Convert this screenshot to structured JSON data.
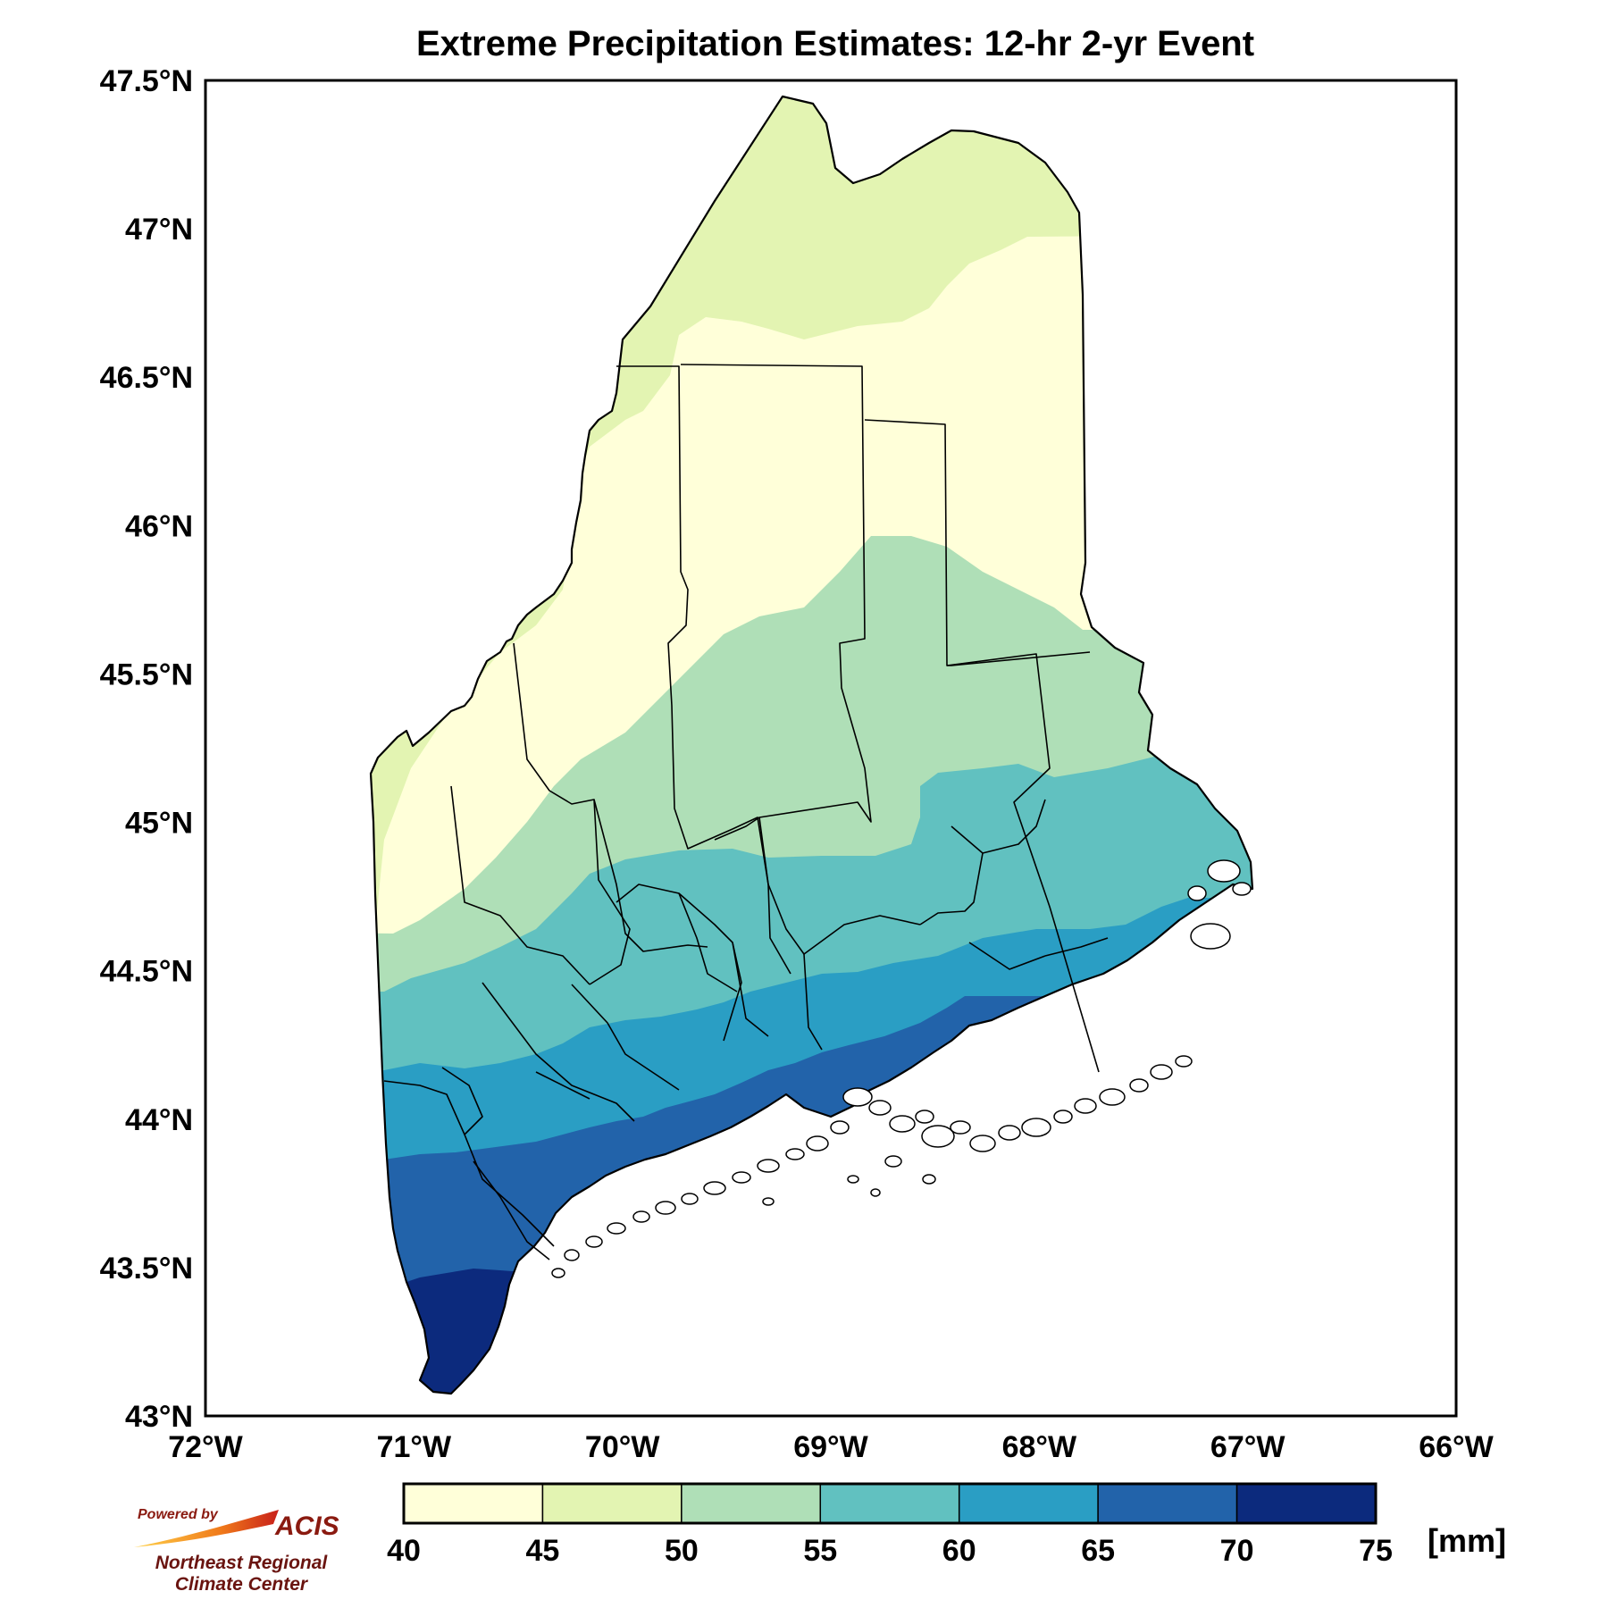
{
  "title": "Extreme Precipitation Estimates: 12-hr 2-yr Event",
  "axes": {
    "lat_ticks": [
      "47.5°N",
      "47°N",
      "46.5°N",
      "46°N",
      "45.5°N",
      "45°N",
      "44.5°N",
      "44°N",
      "43.5°N",
      "43°N"
    ],
    "lon_ticks": [
      "72°W",
      "71°W",
      "70°W",
      "69°W",
      "68°W",
      "67°W",
      "66°W"
    ],
    "lat_range": [
      43.0,
      47.5
    ],
    "lon_range": [
      -72.0,
      -66.0
    ]
  },
  "colorbar": {
    "unit_label": "[mm]",
    "tick_labels": [
      "40",
      "45",
      "50",
      "55",
      "60",
      "65",
      "70",
      "75"
    ],
    "bins": [
      {
        "min": 40,
        "max": 45,
        "color": "#ffffd9"
      },
      {
        "min": 45,
        "max": 50,
        "color": "#e3f4b2"
      },
      {
        "min": 50,
        "max": 55,
        "color": "#afdfb7"
      },
      {
        "min": 55,
        "max": 60,
        "color": "#61c1c0"
      },
      {
        "min": 60,
        "max": 65,
        "color": "#2a9ec4"
      },
      {
        "min": 65,
        "max": 70,
        "color": "#2263aa"
      },
      {
        "min": 70,
        "max": 75,
        "color": "#0c2a7d"
      }
    ]
  },
  "logo": {
    "line1": "Powered by",
    "line2": "ACIS",
    "line3": "Northeast Regional",
    "line4": "Climate Center"
  },
  "map": {
    "region": "Maine",
    "value_units": "mm",
    "gradient": "precipitation increases from ~40 mm in the far north to ~75 mm at the southern coast"
  }
}
